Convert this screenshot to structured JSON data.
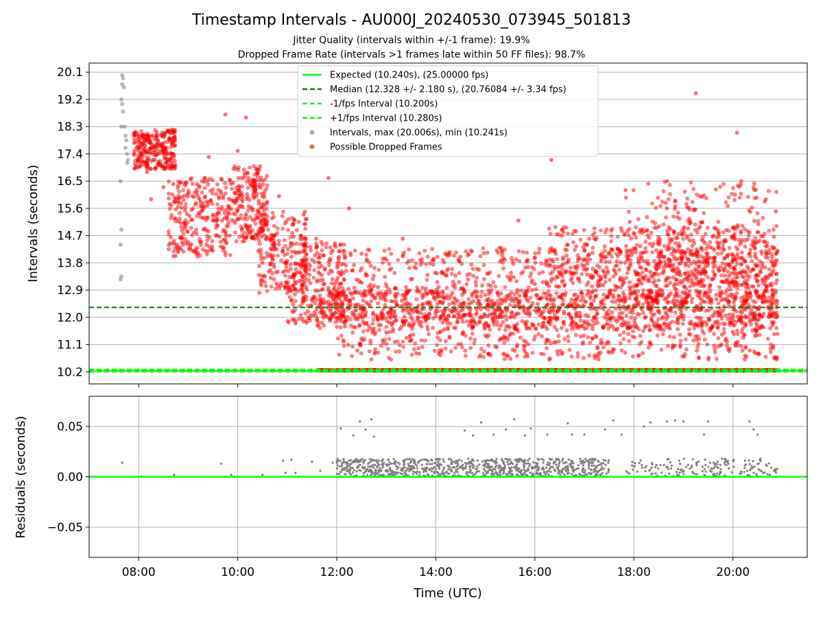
{
  "chart_data": [
    {
      "type": "scatter",
      "panel": "top",
      "title": "Timestamp Intervals - AU000J_20240530_073945_501813",
      "subtitle_lines": [
        "Jitter Quality (intervals within +/-1 frame): 19.9%",
        "Dropped Frame Rate (intervals >1 frames late within 50 FF files): 98.7%"
      ],
      "ylabel": "Intervals (seconds)",
      "xlabel": "",
      "xlim": [
        "07:00",
        "21:30"
      ],
      "ylim": [
        9.8,
        20.4
      ],
      "yticks": [
        "10.2",
        "11.1",
        "12.0",
        "12.9",
        "13.8",
        "14.7",
        "15.6",
        "16.5",
        "17.4",
        "18.3",
        "19.2",
        "20.1"
      ],
      "grid": "horizontal",
      "legend_position": "top-center",
      "reference_lines": [
        {
          "label": "Expected (10.240s), (25.00000 fps)",
          "y": 10.24,
          "color": "#00ff00",
          "style": "solid"
        },
        {
          "label": "Median (12.328 +/- 2.180 s), (20.76084 +/- 3.34 fps)",
          "y": 12.328,
          "color": "#008000",
          "style": "dashed"
        },
        {
          "label": "-1/fps Interval (10.200s)",
          "y": 10.2,
          "color": "#00ff00",
          "style": "dashed"
        },
        {
          "label": "+1/fps Interval (10.280s)",
          "y": 10.28,
          "color": "#00ff00",
          "style": "dashed"
        }
      ],
      "scatter_legend": [
        {
          "label": "Intervals, max (20.006s), min (10.241s)",
          "color": "#808080"
        },
        {
          "label": "Possible Dropped Frames",
          "color": "#ff0000"
        }
      ],
      "series": [
        {
          "name": "Intervals, max (20.006s), min (10.241s)",
          "color": "#808080",
          "points": [
            [
              "07:40",
              20.0
            ],
            [
              "07:41",
              19.9
            ],
            [
              "07:40",
              19.7
            ],
            [
              "07:42",
              19.6
            ],
            [
              "07:39",
              19.2
            ],
            [
              "07:40",
              19.05
            ],
            [
              "07:41",
              18.8
            ],
            [
              "07:39",
              18.3
            ],
            [
              "07:43",
              18.3
            ],
            [
              "07:44",
              18.0
            ],
            [
              "07:45",
              17.85
            ],
            [
              "07:44",
              17.6
            ],
            [
              "07:46",
              17.4
            ],
            [
              "07:47",
              17.2
            ],
            [
              "07:46",
              17.1
            ],
            [
              "07:38",
              16.5
            ],
            [
              "07:39",
              14.9
            ],
            [
              "07:38",
              14.4
            ],
            [
              "07:39",
              13.35
            ],
            [
              "07:38",
              13.25
            ],
            [
              "07:40",
              10.24
            ]
          ]
        },
        {
          "name": "Possible Dropped Frames",
          "color": "#ff0000",
          "points": [
            [
              "07:55",
              17.5
            ],
            [
              "08:00",
              17.8
            ],
            [
              "08:05",
              17.3
            ],
            [
              "08:10",
              17.9
            ],
            [
              "08:15",
              17.6
            ],
            [
              "08:20",
              16.9
            ],
            [
              "08:25",
              17.7
            ],
            [
              "08:30",
              17.4
            ],
            [
              "08:35",
              17.8
            ],
            [
              "08:40",
              18.2
            ],
            [
              "08:10",
              16.8
            ],
            [
              "08:15",
              15.9
            ],
            [
              "08:30",
              16.3
            ],
            [
              "08:42",
              16.4
            ],
            [
              "08:45",
              15.9
            ],
            [
              "08:50",
              14.3
            ],
            [
              "08:55",
              15.1
            ],
            [
              "09:00",
              14.5
            ],
            [
              "09:05",
              16.0
            ],
            [
              "09:10",
              14.1
            ],
            [
              "09:15",
              15.8
            ],
            [
              "09:20",
              16.6
            ],
            [
              "09:25",
              17.3
            ],
            [
              "09:30",
              15.2
            ],
            [
              "09:35",
              14.7
            ],
            [
              "09:40",
              16.1
            ],
            [
              "09:45",
              18.7
            ],
            [
              "09:50",
              15.6
            ],
            [
              "09:55",
              16.9
            ],
            [
              "10:00",
              17.5
            ],
            [
              "10:05",
              15.9
            ],
            [
              "10:10",
              18.6
            ],
            [
              "10:15",
              14.8
            ],
            [
              "10:20",
              16.3
            ],
            [
              "10:25",
              14.2
            ],
            [
              "10:30",
              13.8
            ],
            [
              "10:35",
              15.1
            ],
            [
              "10:40",
              13.3
            ],
            [
              "10:45",
              14.4
            ],
            [
              "10:50",
              16.0
            ],
            [
              "10:55",
              13.5
            ],
            [
              "11:00",
              12.8
            ],
            [
              "11:05",
              14.0
            ],
            [
              "11:10",
              11.8
            ],
            [
              "11:15",
              13.2
            ],
            [
              "11:20",
              15.4
            ],
            [
              "11:25",
              12.2
            ],
            [
              "11:30",
              13.9
            ],
            [
              "11:35",
              14.6
            ],
            [
              "11:40",
              12.6
            ],
            [
              "11:45",
              13.1
            ],
            [
              "11:50",
              16.6
            ],
            [
              "11:55",
              14.2
            ],
            [
              "12:00",
              12.3
            ],
            [
              "12:05",
              13.4
            ],
            [
              "12:10",
              11.7
            ],
            [
              "12:15",
              15.6
            ],
            [
              "12:20",
              12.1
            ],
            [
              "12:25",
              10.9
            ],
            [
              "12:30",
              14.1
            ],
            [
              "12:40",
              12.4
            ],
            [
              "12:50",
              13.0
            ],
            [
              "13:00",
              11.5
            ],
            [
              "13:10",
              12.2
            ],
            [
              "13:20",
              14.6
            ],
            [
              "13:30",
              12.0
            ],
            [
              "13:40",
              10.8
            ],
            [
              "13:50",
              13.4
            ],
            [
              "14:00",
              12.2
            ],
            [
              "14:10",
              11.6
            ],
            [
              "14:20",
              12.8
            ],
            [
              "14:30",
              14.0
            ],
            [
              "14:40",
              12.1
            ],
            [
              "14:50",
              13.6
            ],
            [
              "15:00",
              11.4
            ],
            [
              "15:10",
              12.4
            ],
            [
              "15:20",
              14.2
            ],
            [
              "15:30",
              12.0
            ],
            [
              "15:40",
              15.2
            ],
            [
              "15:50",
              12.6
            ],
            [
              "16:00",
              13.1
            ],
            [
              "16:10",
              11.8
            ],
            [
              "16:20",
              17.2
            ],
            [
              "16:30",
              12.3
            ],
            [
              "16:40",
              14.4
            ],
            [
              "16:50",
              12.1
            ],
            [
              "17:00",
              13.7
            ],
            [
              "17:10",
              11.9
            ],
            [
              "17:20",
              12.5
            ],
            [
              "17:30",
              14.1
            ],
            [
              "17:40",
              13.0
            ],
            [
              "17:50",
              16.2
            ],
            [
              "18:00",
              12.4
            ],
            [
              "18:10",
              14.9
            ],
            [
              "18:20",
              13.5
            ],
            [
              "18:30",
              12.2
            ],
            [
              "18:40",
              15.6
            ],
            [
              "18:50",
              13.1
            ],
            [
              "19:00",
              12.4
            ],
            [
              "19:10",
              14.1
            ],
            [
              "19:15",
              19.4
            ],
            [
              "19:20",
              16.0
            ],
            [
              "19:30",
              13.8
            ],
            [
              "19:40",
              12.6
            ],
            [
              "19:50",
              14.5
            ],
            [
              "20:00",
              13.9
            ],
            [
              "20:05",
              18.1
            ],
            [
              "20:10",
              16.5
            ],
            [
              "20:15",
              12.0
            ],
            [
              "20:20",
              14.8
            ],
            [
              "20:30",
              13.2
            ],
            [
              "20:40",
              15.9
            ],
            [
              "20:45",
              12.3
            ],
            [
              "20:50",
              13.7
            ],
            [
              "20:52",
              15.5
            ]
          ],
          "dense_band": {
            "x_range": [
              "11:45",
              "20:55"
            ],
            "y": 10.24
          }
        }
      ]
    },
    {
      "type": "scatter",
      "panel": "bottom",
      "ylabel": "Residuals (seconds)",
      "xlabel": "Time (UTC)",
      "xlim": [
        "07:00",
        "21:30"
      ],
      "ylim": [
        -0.08,
        0.08
      ],
      "yticks": [
        "0.05",
        "0.00",
        "−0.05"
      ],
      "xticks": [
        "08:00",
        "10:00",
        "12:00",
        "14:00",
        "16:00",
        "18:00",
        "20:00"
      ],
      "grid": "both",
      "reference_lines": [
        {
          "y": 0.0,
          "color": "#00ff00",
          "style": "solid"
        }
      ],
      "series": [
        {
          "color": "#808080",
          "points": [
            [
              "07:40",
              0.014
            ],
            [
              "08:43",
              0.002
            ],
            [
              "09:40",
              0.013
            ],
            [
              "09:52",
              0.002
            ],
            [
              "10:30",
              0.002
            ],
            [
              "10:55",
              0.016
            ],
            [
              "10:58",
              0.004
            ],
            [
              "11:05",
              0.017
            ],
            [
              "11:10",
              0.004
            ],
            [
              "11:30",
              0.015
            ],
            [
              "11:40",
              0.006
            ],
            [
              "11:55",
              0.014
            ],
            [
              "12:05",
              0.048
            ],
            [
              "12:15",
              0.016
            ],
            [
              "12:20",
              0.041
            ],
            [
              "12:28",
              0.055
            ],
            [
              "12:35",
              0.047
            ],
            [
              "12:42",
              0.057
            ],
            [
              "12:45",
              0.04
            ],
            [
              "14:35",
              0.046
            ],
            [
              "14:45",
              0.041
            ],
            [
              "14:55",
              0.054
            ],
            [
              "15:10",
              0.042
            ],
            [
              "15:25",
              0.047
            ],
            [
              "15:35",
              0.057
            ],
            [
              "15:48",
              0.041
            ],
            [
              "15:55",
              0.048
            ],
            [
              "16:15",
              0.042
            ],
            [
              "16:40",
              0.053
            ],
            [
              "16:45",
              0.042
            ],
            [
              "17:00",
              0.042
            ],
            [
              "17:25",
              0.047
            ],
            [
              "17:35",
              0.056
            ],
            [
              "17:45",
              0.042
            ],
            [
              "18:12",
              0.05
            ],
            [
              "18:20",
              0.054
            ],
            [
              "18:40",
              0.055
            ],
            [
              "18:50",
              0.056
            ],
            [
              "19:00",
              0.055
            ],
            [
              "19:25",
              0.042
            ],
            [
              "19:30",
              0.055
            ],
            [
              "20:20",
              0.055
            ],
            [
              "20:25",
              0.047
            ],
            [
              "20:30",
              0.042
            ],
            [
              "18:55",
              0.016
            ],
            [
              "19:10",
              0.011
            ],
            [
              "19:35",
              0.008
            ],
            [
              "19:45",
              0.004
            ],
            [
              "20:40",
              0.012
            ],
            [
              "20:50",
              0.006
            ]
          ],
          "dense_band": {
            "x_range": [
              "12:00",
              "17:30"
            ],
            "y_range": [
              0.0,
              0.018
            ]
          }
        }
      ]
    }
  ]
}
